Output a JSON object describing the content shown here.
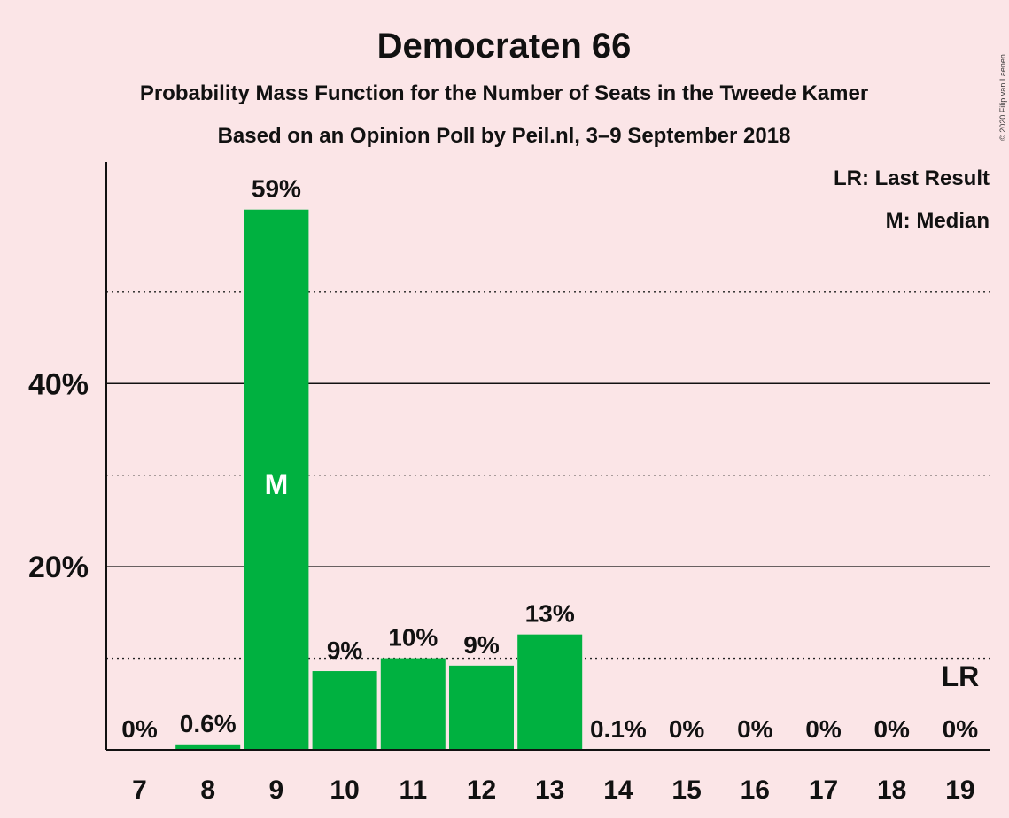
{
  "copyright": "© 2020 Filip van Laenen",
  "colors": {
    "bar": "#00b140",
    "background": "#fbe5e7",
    "text": "#111111"
  },
  "legend": {
    "last_result": "LR: Last Result",
    "median": "M: Median",
    "placement": "top-right"
  },
  "chart_data": {
    "type": "bar",
    "title": "Democraten 66",
    "subtitle": "Probability Mass Function for the Number of Seats in the Tweede Kamer",
    "subtitle2": "Based on an Opinion Poll by Peil.nl, 3–9 September 2018",
    "xlabel": "",
    "ylabel": "",
    "categories": [
      "7",
      "8",
      "9",
      "10",
      "11",
      "12",
      "13",
      "14",
      "15",
      "16",
      "17",
      "18",
      "19"
    ],
    "values": [
      0,
      0.6,
      59,
      8.6,
      10,
      9.2,
      12.6,
      0.1,
      0,
      0,
      0,
      0,
      0
    ],
    "data_labels": [
      "0%",
      "0.6%",
      "59%",
      "9%",
      "10%",
      "9%",
      "13%",
      "0.1%",
      "0%",
      "0%",
      "0%",
      "0%",
      "0%"
    ],
    "ylim": [
      0,
      64
    ],
    "y_ticks": [
      {
        "value": 20,
        "label": "20%"
      },
      {
        "value": 40,
        "label": "40%"
      }
    ],
    "gridlines_solid": [
      20,
      40
    ],
    "gridlines_dotted": [
      10,
      30,
      50
    ],
    "median_seat": "9",
    "median_mark": "M",
    "last_result_seat": "19",
    "last_result_mark": "LR"
  }
}
